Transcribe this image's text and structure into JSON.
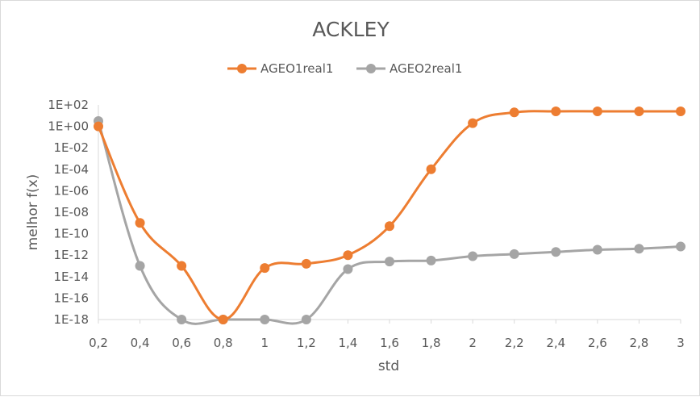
{
  "chart_data": {
    "type": "line",
    "title": "ACKLEY",
    "xlabel": "std",
    "ylabel": "melhor f(x)",
    "x": [
      "0,2",
      "0,4",
      "0,6",
      "0,8",
      "1",
      "1,2",
      "1,4",
      "1,6",
      "1,8",
      "2",
      "2,2",
      "2,4",
      "2,6",
      "2,8",
      "3"
    ],
    "y_scale": "log10",
    "ylim_exp": [
      -18,
      2
    ],
    "y_tick_labels": [
      "1E+02",
      "1E+00",
      "1E-02",
      "1E-04",
      "1E-06",
      "1E-08",
      "1E-10",
      "1E-12",
      "1E-14",
      "1E-16",
      "1E-18"
    ],
    "series": [
      {
        "name": "AGEO1real1",
        "color": "#ED7D31",
        "log10_values": [
          0,
          -9.0,
          -13.0,
          -18.0,
          -13.2,
          -12.8,
          -12.0,
          -9.3,
          -4.0,
          0.3,
          1.3,
          1.4,
          1.4,
          1.4,
          1.4
        ]
      },
      {
        "name": "AGEO2real1",
        "color": "#A5A5A5",
        "log10_values": [
          0.5,
          -13.0,
          -18.0,
          -18.0,
          -18.0,
          -18.0,
          -13.3,
          -12.6,
          -12.5,
          -12.1,
          -11.9,
          -11.7,
          -11.5,
          -11.4,
          -11.2
        ]
      }
    ],
    "grid": false,
    "legend_position": "top"
  }
}
